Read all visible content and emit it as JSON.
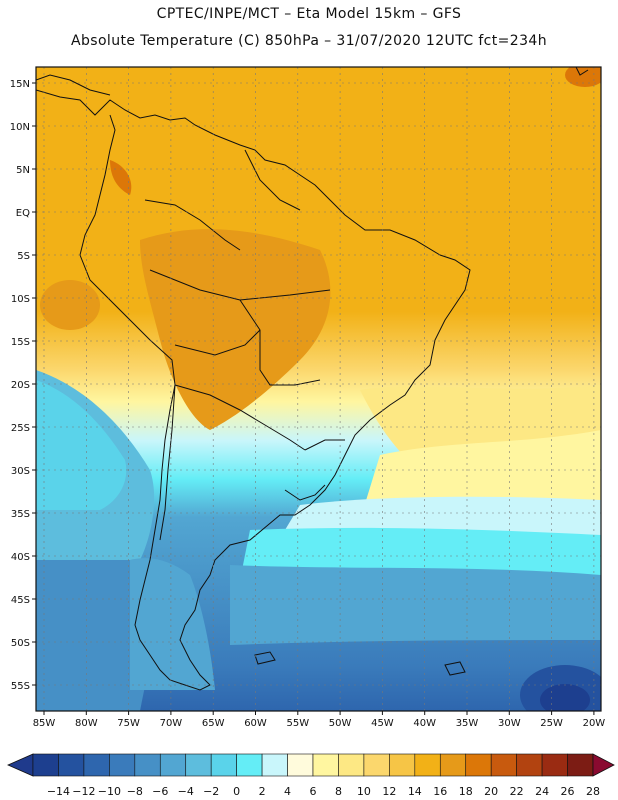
{
  "header": {
    "line1": "CPTEC/INPE/MCT –  Eta Model 15km – GFS",
    "line2": "Absolute Temperature (C) 850hPa – 31/07/2020 12UTC fct=234h"
  },
  "map": {
    "lat_labels": [
      "15N",
      "10N",
      "5N",
      "EQ",
      "5S",
      "10S",
      "15S",
      "20S",
      "25S",
      "30S",
      "35S",
      "40S",
      "45S",
      "50S",
      "55S"
    ],
    "lon_labels": [
      "85W",
      "80W",
      "75W",
      "70W",
      "65W",
      "60W",
      "55W",
      "50W",
      "45W",
      "40W",
      "35W",
      "30W",
      "25W",
      "20W"
    ]
  },
  "colorbar": {
    "labels": [
      "-14",
      "-12",
      "-10",
      "-8",
      "-6",
      "-4",
      "-2",
      "0",
      "2",
      "4",
      "6",
      "8",
      "10",
      "12",
      "14",
      "16",
      "18",
      "20",
      "22",
      "24",
      "26",
      "28"
    ],
    "colors": [
      "#1d3f8f",
      "#24529f",
      "#2e66ae",
      "#3a7bbb",
      "#4690c6",
      "#52a6d2",
      "#5dbddd",
      "#5ad3ea",
      "#64edf6",
      "#c9f6fb",
      "#fffbdc",
      "#fff6a0",
      "#fde884",
      "#fbd76d",
      "#f6c546",
      "#f2b117",
      "#e69a19",
      "#dc7708",
      "#c85a0e",
      "#b24310",
      "#9a2b12",
      "#7c1c14"
    ],
    "under_color": "#1f3a8c",
    "over_color": "#8a0a30"
  }
}
